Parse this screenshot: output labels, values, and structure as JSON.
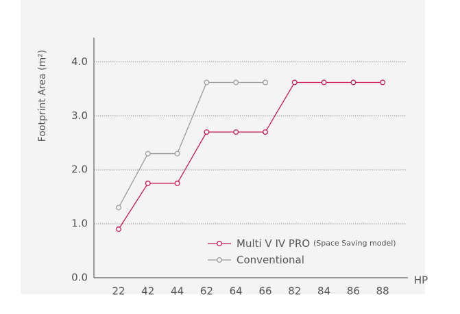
{
  "chart_data": {
    "type": "line",
    "y_label": "Footprint Area (m²)",
    "x_label": "HP",
    "categories": [
      "22",
      "42",
      "44",
      "62",
      "64",
      "66",
      "82",
      "84",
      "86",
      "88"
    ],
    "series": [
      {
        "name": "Multi V IV PRO",
        "note": "(Space Saving model)",
        "color": "#c8174f",
        "values": [
          0.9,
          1.75,
          1.75,
          2.7,
          2.7,
          2.7,
          3.62,
          3.62,
          3.62,
          3.62
        ]
      },
      {
        "name": "Conventional",
        "color": "#999999",
        "values": [
          1.3,
          2.3,
          2.3,
          3.62,
          3.62,
          3.62,
          null,
          null,
          null,
          null
        ]
      }
    ],
    "ylim": [
      0,
      4.45
    ],
    "yticks": [
      {
        "value": 0,
        "label": "0.0"
      },
      {
        "value": 1,
        "label": "1.0"
      },
      {
        "value": 2,
        "label": "2.0"
      },
      {
        "value": 3,
        "label": "3.0"
      },
      {
        "value": 4,
        "label": "4.0"
      }
    ],
    "grid": true
  }
}
